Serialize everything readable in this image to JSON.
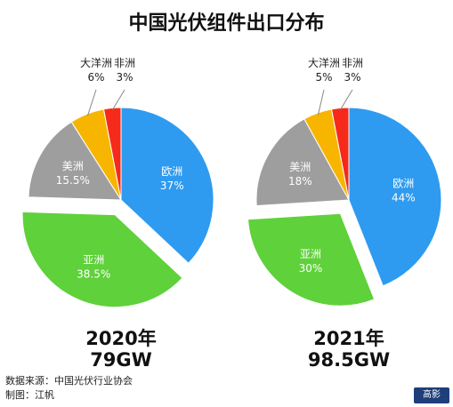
{
  "title": "中国光伏组件出口分布",
  "footer": {
    "source": "数据来源：中国光伏行业协会",
    "author": "制图：江帆"
  },
  "logo_text": "高影",
  "chart_data": [
    {
      "type": "pie",
      "year_label": "2020年",
      "total_label": "79GW",
      "slices": [
        {
          "name": "欧洲",
          "value": 37,
          "label": "37%",
          "color": "#2e9bf0"
        },
        {
          "name": "亚洲",
          "value": 38.5,
          "label": "38.5%",
          "color": "#5fd13b"
        },
        {
          "name": "美洲",
          "value": 15.5,
          "label": "15.5%",
          "color": "#9e9e9e"
        },
        {
          "name": "大洋洲",
          "value": 6,
          "label": "6%",
          "color": "#f7b500"
        },
        {
          "name": "非洲",
          "value": 3,
          "label": "3%",
          "color": "#f52a1a"
        }
      ]
    },
    {
      "type": "pie",
      "year_label": "2021年",
      "total_label": "98.5GW",
      "slices": [
        {
          "name": "欧洲",
          "value": 44,
          "label": "44%",
          "color": "#2e9bf0"
        },
        {
          "name": "亚洲",
          "value": 30,
          "label": "30%",
          "color": "#5fd13b"
        },
        {
          "name": "美洲",
          "value": 18,
          "label": "18%",
          "color": "#9e9e9e"
        },
        {
          "name": "大洋洲",
          "value": 5,
          "label": "5%",
          "color": "#f7b500"
        },
        {
          "name": "非洲",
          "value": 3,
          "label": "3%",
          "color": "#f52a1a"
        }
      ]
    }
  ]
}
